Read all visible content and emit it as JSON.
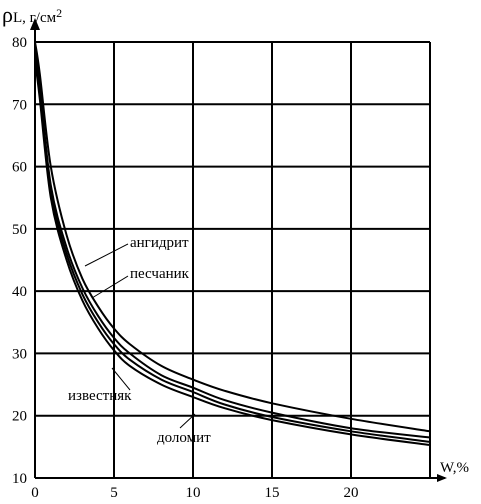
{
  "chart_data": {
    "type": "line",
    "ylabel_prefix": "ρ",
    "ylabel": "L, г/см",
    "ylabel_sup": "2",
    "xlabel": "W,%",
    "xlim": [
      0,
      25
    ],
    "ylim": [
      10,
      80
    ],
    "x_ticks": [
      0,
      5,
      10,
      15,
      20
    ],
    "y_ticks": [
      10,
      20,
      30,
      40,
      50,
      60,
      70,
      80
    ],
    "grid": true,
    "series": [
      {
        "name": "ангидрит",
        "x": [
          0,
          0.3,
          1,
          2,
          3,
          4,
          5,
          6,
          8,
          10,
          12,
          15,
          20,
          25
        ],
        "y": [
          80,
          75,
          60,
          49,
          42,
          37.5,
          34,
          31.5,
          28,
          25.8,
          24,
          22,
          19.5,
          17.5
        ]
      },
      {
        "name": "песчаник",
        "x": [
          0,
          0.3,
          1,
          2,
          3,
          4,
          5,
          6,
          8,
          10,
          12,
          15,
          20,
          25
        ],
        "y": [
          79,
          73,
          57,
          47,
          40.5,
          36,
          32.5,
          30,
          26.5,
          24.5,
          22.5,
          20.5,
          18,
          16.5
        ]
      },
      {
        "name": "известняк",
        "x": [
          0,
          0.3,
          1,
          2,
          3,
          4,
          5,
          6,
          8,
          10,
          12,
          15,
          20,
          25
        ],
        "y": [
          78,
          72,
          56,
          46,
          39.5,
          35,
          31.5,
          29,
          25.8,
          23.8,
          21.8,
          19.8,
          17.5,
          15.8
        ]
      },
      {
        "name": "доломит",
        "x": [
          0,
          0.3,
          1,
          2,
          3,
          4,
          5,
          6,
          8,
          10,
          12,
          15,
          20,
          25
        ],
        "y": [
          77,
          71,
          55,
          45,
          38.5,
          34,
          30.5,
          28,
          25,
          23,
          21.2,
          19.3,
          17,
          15.3
        ]
      }
    ]
  }
}
